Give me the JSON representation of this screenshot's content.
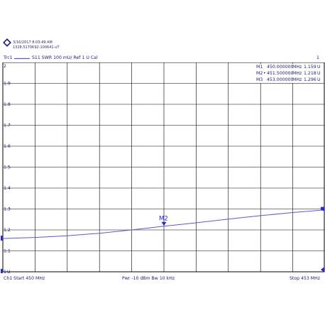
{
  "header": {
    "timestamp": "3/16/2017 8:03:49 AM",
    "serial": "1328.5170K92-100641-uT",
    "brand_icon": "rohde-schwarz-logo"
  },
  "trace": {
    "name": "Trc1",
    "description": "S11  SWR  100 mU/ Ref 1 U  Cal",
    "channel_number": "1",
    "color": "#5a5ad0"
  },
  "markers": [
    {
      "name": "M1",
      "active": "",
      "freq": "450.000000",
      "unit": "MHz",
      "value": "1.159",
      "vunit": "U"
    },
    {
      "name": "M2",
      "active": "•",
      "freq": "451.500000",
      "unit": "MHz",
      "value": "1.218",
      "vunit": "U"
    },
    {
      "name": "M3",
      "active": "",
      "freq": "453.000000",
      "unit": "MHz",
      "value": "1.296",
      "vunit": "U"
    }
  ],
  "marker_label": "M2",
  "footer": {
    "start": "Ch1  Start  450 MHz",
    "middle": "Pwr  -10 dBm  Bw  10 kHz",
    "stop": "Stop  453 MHz"
  },
  "chart_data": {
    "type": "line",
    "x_unit": "MHz",
    "xlim": [
      450,
      453
    ],
    "ylim": [
      1,
      2
    ],
    "y_ticks": [
      "2",
      "1.9",
      "1.8",
      "1.7",
      "1.6",
      "1.5",
      "1.4",
      "1.3",
      "1.2",
      "1.1",
      "1"
    ],
    "y_tick_values": [
      2,
      1.9,
      1.8,
      1.7,
      1.6,
      1.5,
      1.4,
      1.3,
      1.2,
      1.1,
      1.0
    ],
    "y_axis_unit_label": "U",
    "grid": true,
    "x": [
      450.0,
      450.3,
      450.6,
      450.9,
      451.2,
      451.5,
      451.8,
      452.1,
      452.4,
      452.7,
      453.0
    ],
    "y": [
      1.159,
      1.164,
      1.172,
      1.184,
      1.2,
      1.218,
      1.234,
      1.252,
      1.268,
      1.283,
      1.296
    ],
    "marker_points": [
      {
        "label": "M1",
        "x": 450.0,
        "y": 1.159
      },
      {
        "label": "M2",
        "x": 451.5,
        "y": 1.218
      },
      {
        "label": "M3",
        "x": 453.0,
        "y": 1.296
      }
    ]
  }
}
